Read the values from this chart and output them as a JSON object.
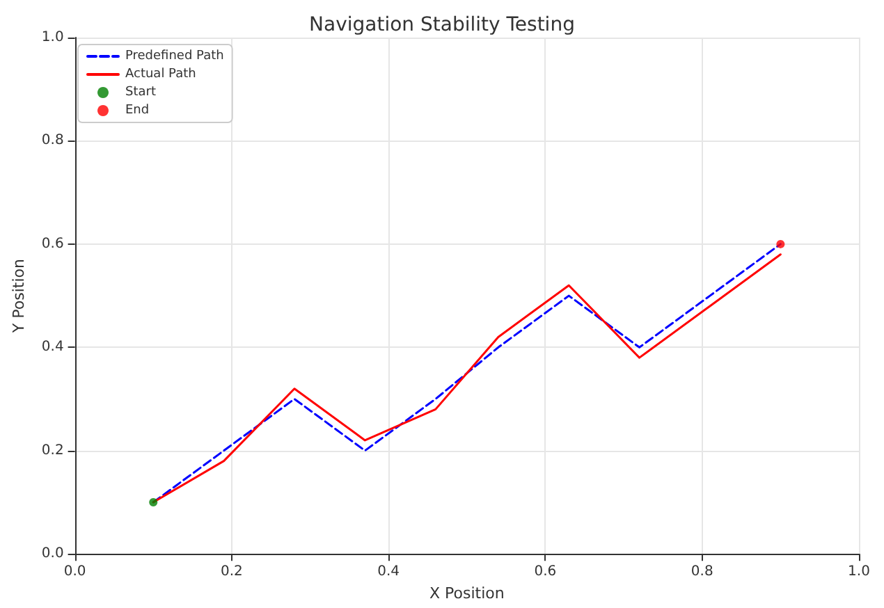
{
  "chart_data": {
    "type": "line",
    "title": "Navigation Stability Testing",
    "xlabel": "X Position",
    "ylabel": "Y Position",
    "xlim": [
      0,
      1
    ],
    "ylim": [
      0,
      1
    ],
    "xticks": [
      {
        "value": 0,
        "label": "0.0"
      },
      0.2,
      0.4,
      0.6,
      0.8,
      {
        "value": 1,
        "label": "1.0"
      }
    ],
    "yticks": [
      {
        "value": 0,
        "label": "0.0"
      },
      0.2,
      0.4,
      0.6,
      0.8,
      {
        "value": 1,
        "label": "1.0"
      }
    ],
    "grid": true,
    "legend": "top left",
    "series": [
      {
        "name": "Predefined Path",
        "color": "#0000ff",
        "line_style": "dashed",
        "marker": "none",
        "x": [
          0.1,
          0.19,
          0.28,
          0.37,
          0.46,
          0.54,
          0.63,
          0.72,
          0.81,
          0.9
        ],
        "values": [
          0.1,
          0.2,
          0.3,
          0.2,
          0.3,
          0.4,
          0.5,
          0.4,
          0.5,
          0.6
        ]
      },
      {
        "name": "Actual Path",
        "color": "#ff0000",
        "line_style": "solid",
        "marker": "none",
        "x": [
          0.1,
          0.19,
          0.28,
          0.37,
          0.46,
          0.54,
          0.63,
          0.72,
          0.81,
          0.9
        ],
        "values": [
          0.1,
          0.18,
          0.32,
          0.22,
          0.28,
          0.42,
          0.52,
          0.38,
          0.48,
          0.58
        ]
      },
      {
        "name": "Start",
        "type": "scatter",
        "color": "#008000",
        "marker": "circle",
        "x": [
          0.1
        ],
        "values": [
          0.1
        ]
      },
      {
        "name": "End",
        "type": "scatter",
        "color": "#ff0000",
        "marker": "circle",
        "x": [
          0.9
        ],
        "values": [
          0.6
        ]
      }
    ]
  }
}
